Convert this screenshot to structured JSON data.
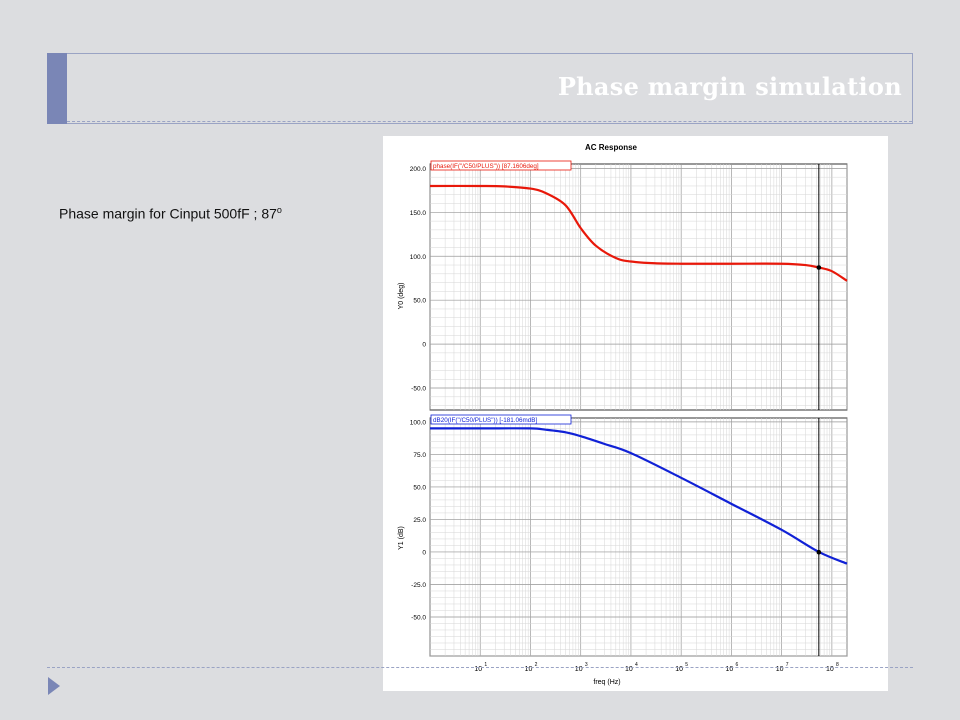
{
  "slide": {
    "title": "Phase margin simulation",
    "caption": "Phase margin for Cinput 500fF ; 87",
    "caption_sup": "o"
  },
  "colors": {
    "phase": "#e8180a",
    "gain": "#1021d6",
    "title_bar": "#7a86b6"
  },
  "chart_data": [
    {
      "type": "line",
      "title": "AC Response",
      "ylabel": "Y0 (deg)",
      "xscale": "log",
      "xlim": [
        1,
        200000000
      ],
      "ylim": [
        -75,
        205
      ],
      "yticks": [
        200,
        150,
        100,
        50,
        0,
        -50
      ],
      "yticklabels": [
        "200.0",
        "150.0",
        "100.0",
        "50.0",
        "0",
        "-50.0"
      ],
      "legend": "phase(IF(\"/C50/PLUS\"))  [87.1606deg]",
      "grid": true,
      "cursor_x": 55000000,
      "marker": {
        "x": 55000000,
        "y": 87.16
      },
      "series": [
        {
          "x": [
            1,
            10,
            30,
            100,
            200,
            500,
            1000,
            2000,
            5000,
            10000,
            30000,
            100000,
            1000000,
            10000000,
            30000000,
            55000000,
            100000000,
            200000000
          ],
          "y": [
            180,
            180,
            179.5,
            177,
            172,
            158,
            132,
            112,
            98,
            94,
            92,
            91.5,
            91.5,
            91.5,
            90,
            87.16,
            83,
            72
          ]
        }
      ]
    },
    {
      "type": "line",
      "xlabel": "freq (Hz)",
      "ylabel": "Y1 (dB)",
      "xscale": "log",
      "xlim": [
        1,
        200000000
      ],
      "ylim": [
        -80,
        103
      ],
      "yticks": [
        100,
        75,
        50,
        25,
        0,
        -25,
        -50
      ],
      "yticklabels": [
        "100.0",
        "75.0",
        "50.0",
        "25.0",
        "0",
        "-25.0",
        "-50.0"
      ],
      "xticks": [
        10,
        100,
        1000,
        10000,
        100000,
        1000000,
        10000000,
        100000000
      ],
      "xtick_exponents": [
        "1",
        "2",
        "3",
        "4",
        "5",
        "6",
        "7",
        "8"
      ],
      "xtick_base": "10",
      "legend": "dB20(IF(\"/C50/PLUS\"))  [-181.06mdB]",
      "grid": true,
      "cursor_x": 55000000,
      "marker": {
        "x": 55000000,
        "y": -0.181
      },
      "series": [
        {
          "x": [
            1,
            10,
            100,
            200,
            500,
            1000,
            3000,
            10000,
            100000,
            1000000,
            10000000,
            55000000,
            200000000
          ],
          "y": [
            95,
            95,
            95,
            94,
            92,
            89,
            83,
            76,
            57,
            37,
            17,
            0,
            -9
          ]
        }
      ]
    }
  ]
}
